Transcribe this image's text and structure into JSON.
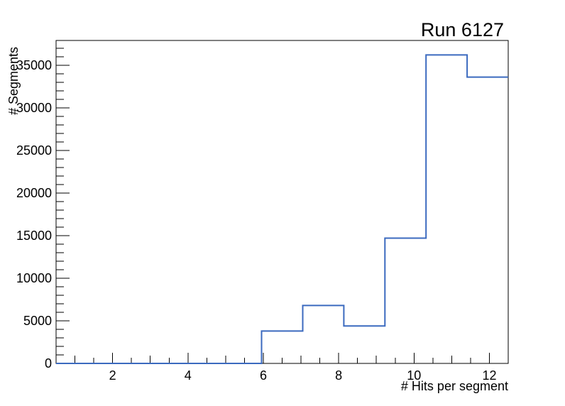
{
  "title": "Run 6127",
  "axes": {
    "x_label": "# Hits per segment",
    "y_label": "# Segments"
  },
  "chart_data": {
    "type": "bar",
    "subtype": "step-histogram-outline",
    "title": "Run 6127",
    "xlabel": "# Hits per segment",
    "ylabel": "# Segments",
    "xlim": [
      0.5,
      12.5
    ],
    "ylim": [
      0,
      37900
    ],
    "bin_edges": [
      0.5,
      1.5909,
      2.6818,
      3.7727,
      4.8636,
      5.9545,
      7.0455,
      8.1364,
      9.2273,
      10.3182,
      11.4091,
      12.5
    ],
    "values": [
      0,
      0,
      0,
      0,
      0,
      3800,
      6800,
      4400,
      14700,
      36200,
      33600
    ],
    "x_major_ticks": [
      2,
      4,
      6,
      8,
      10,
      12
    ],
    "x_major_tick_labels": [
      "2",
      "4",
      "6",
      "8",
      "10",
      "12"
    ],
    "x_minor_tick_step": 0.5,
    "y_major_ticks": [
      0,
      5000,
      10000,
      15000,
      20000,
      25000,
      30000,
      35000
    ],
    "y_major_tick_labels": [
      "0",
      "5000",
      "10000",
      "15000",
      "20000",
      "25000",
      "30000",
      "35000"
    ],
    "y_minor_tick_step": 1000,
    "grid": false,
    "legend": false,
    "line_color": "#3b6abf",
    "frame_color": "#000000",
    "background_color": "#ffffff"
  }
}
